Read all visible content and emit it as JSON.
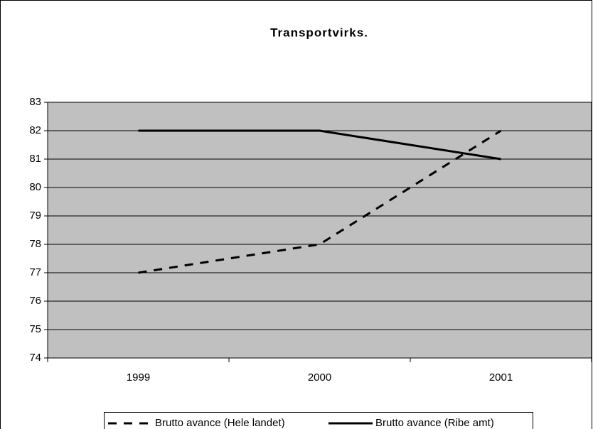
{
  "chart_data": {
    "type": "line",
    "title": "Transportvirks.",
    "categories": [
      "1999",
      "2000",
      "2001"
    ],
    "series": [
      {
        "name": "Brutto avance (Hele landet)",
        "color": "#000000",
        "line_style": "dashed",
        "values": [
          77,
          78,
          82
        ]
      },
      {
        "name": "Brutto avance (Ribe amt)",
        "color": "#000000",
        "line_style": "solid",
        "values": [
          82,
          82,
          81
        ]
      }
    ],
    "ylim": [
      74,
      83
    ],
    "yticks": [
      74,
      75,
      76,
      77,
      78,
      79,
      80,
      81,
      82,
      83
    ],
    "grid": true,
    "plot_background": "#c0c0c0",
    "legend": "bottom"
  }
}
